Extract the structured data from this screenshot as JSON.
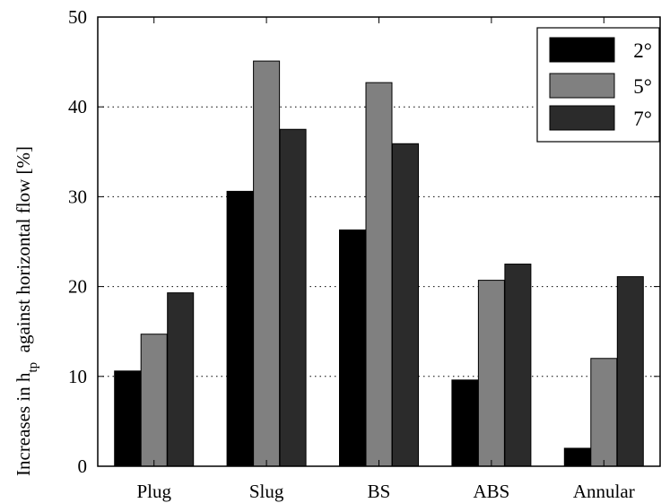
{
  "chart_data": {
    "type": "bar",
    "categories": [
      "Plug",
      "Slug",
      "BS",
      "ABS",
      "Annular"
    ],
    "series": [
      {
        "name": "2°",
        "values": [
          10.6,
          30.6,
          26.3,
          9.6,
          2.0
        ],
        "color": "#000000"
      },
      {
        "name": "5°",
        "values": [
          14.7,
          45.1,
          42.7,
          20.7,
          12.0
        ],
        "color": "#808080"
      },
      {
        "name": "7°",
        "values": [
          19.3,
          37.5,
          35.9,
          22.5,
          21.1
        ],
        "color": "#2b2b2b"
      }
    ],
    "ylabel": {
      "prefix": "Increases in h",
      "subscript": "tp",
      "suffix": "  against horizontal flow [%]"
    },
    "ylim": [
      0,
      50
    ],
    "yticks": [
      "0",
      "10",
      "20",
      "30",
      "40",
      "50"
    ],
    "grid": "horizontal dotted",
    "legend_position": "top-right"
  }
}
